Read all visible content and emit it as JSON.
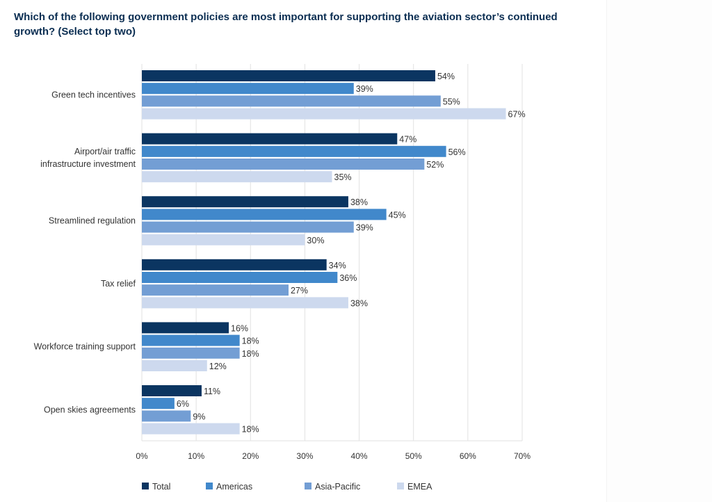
{
  "title": "Which of the following government policies are most important for supporting the aviation sector’s continued growth? (Select top two)",
  "chart_data": {
    "type": "bar",
    "orientation": "horizontal",
    "title": "Which of the following government policies are most important for supporting the aviation sector’s continued growth? (Select top two)",
    "categories": [
      [
        "Green tech incentives"
      ],
      [
        "Airport/air traffic",
        "infrastructure investment"
      ],
      [
        "Streamlined regulation"
      ],
      [
        "Tax relief"
      ],
      [
        "Workforce training support"
      ],
      [
        "Open skies agreements"
      ]
    ],
    "series": [
      {
        "name": "Total",
        "color": "#0b3561",
        "values": [
          54,
          47,
          38,
          34,
          16,
          11
        ]
      },
      {
        "name": "Americas",
        "color": "#4188cb",
        "values": [
          39,
          56,
          45,
          36,
          18,
          6
        ]
      },
      {
        "name": "Asia-Pacific",
        "color": "#739ed4",
        "values": [
          55,
          52,
          39,
          27,
          18,
          9
        ]
      },
      {
        "name": "EMEA",
        "color": "#cdd9ee",
        "values": [
          67,
          35,
          30,
          38,
          12,
          18
        ]
      }
    ],
    "value_suffix": "%",
    "xlim": [
      0,
      70
    ],
    "xticks": [
      0,
      10,
      20,
      30,
      40,
      50,
      60,
      70
    ],
    "xtick_labels": [
      "0%",
      "10%",
      "20%",
      "30%",
      "40%",
      "50%",
      "60%",
      "70%"
    ],
    "xlabel": "",
    "ylabel": "",
    "grid": true,
    "legend_position": "bottom"
  }
}
